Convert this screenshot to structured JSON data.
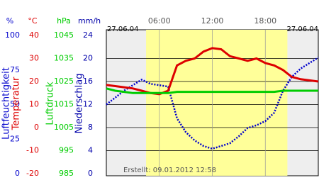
{
  "chart_data": {
    "type": "line",
    "date_left": "27.06.04",
    "date_right": "27.06.04",
    "created": "Erstellt: 09.01.2012 12:58",
    "xlim": [
      0,
      24
    ],
    "xticks": [
      {
        "value": 6,
        "label": "06:00"
      },
      {
        "value": 12,
        "label": "12:00"
      },
      {
        "value": 18,
        "label": "18:00"
      }
    ],
    "daylight": [
      4.5,
      20.5
    ],
    "axes": [
      {
        "unit": "%",
        "label": "Luftfeuchtigkeit",
        "color": "#0000cc",
        "ylim": [
          0,
          100
        ],
        "yticks": [
          0,
          25,
          50,
          75,
          100
        ]
      },
      {
        "unit": "°C",
        "label": "Temperatur",
        "color": "#dd0000",
        "ylim": [
          -20,
          40
        ],
        "yticks": [
          -20,
          -10,
          0,
          10,
          20,
          30,
          40
        ]
      },
      {
        "unit": "hPa",
        "label": "Luftdruck",
        "color": "#00cc00",
        "ylim": [
          985,
          1045
        ],
        "yticks": [
          985,
          995,
          1005,
          1015,
          1025,
          1035,
          1045
        ]
      },
      {
        "unit": "mm/h",
        "label": "Niederschlag",
        "color": "#0000aa",
        "ylim": [
          0,
          24
        ],
        "yticks": [
          0,
          4,
          8,
          12,
          16,
          20,
          24
        ]
      }
    ],
    "x": [
      0,
      1,
      2,
      3,
      4,
      5,
      6,
      7,
      8,
      9,
      10,
      11,
      12,
      13,
      14,
      15,
      16,
      17,
      18,
      19,
      20,
      21,
      22,
      23,
      24
    ],
    "series": [
      {
        "name": "Luftfeuchtigkeit",
        "axis": 0,
        "color": "#0000cc",
        "values": [
          50,
          55,
          60,
          64,
          68,
          65,
          64,
          63,
          40,
          30,
          24,
          20,
          18,
          20,
          22,
          27,
          33,
          35,
          38,
          44,
          60,
          70,
          76,
          80,
          84
        ]
      },
      {
        "name": "Temperatur",
        "axis": 1,
        "color": "#dd0000",
        "values": [
          18.5,
          18,
          17.5,
          17,
          16,
          15,
          14.5,
          16,
          27,
          29,
          30,
          33,
          34.5,
          34,
          31,
          30,
          29,
          30,
          28,
          27,
          25,
          22,
          21,
          20.5,
          20
        ]
      },
      {
        "name": "Luftdruck",
        "axis": 2,
        "color": "#00cc00",
        "values": [
          1022,
          1021,
          1020.5,
          1020,
          1020,
          1020,
          1020,
          1020,
          1020.5,
          1020.5,
          1020.5,
          1020.5,
          1020.5,
          1020.5,
          1020.5,
          1020.5,
          1020.5,
          1020.5,
          1020.5,
          1020.5,
          1021,
          1021,
          1021,
          1021,
          1021
        ]
      }
    ]
  }
}
